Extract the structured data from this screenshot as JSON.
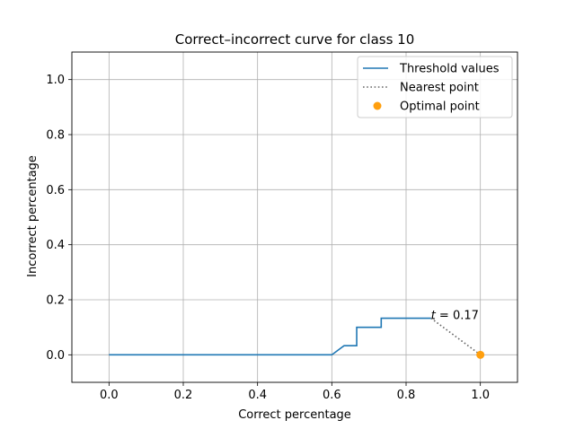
{
  "chart_data": {
    "type": "line",
    "title": "Correct–incorrect curve for class 10",
    "xlabel": "Correct percentage",
    "ylabel": "Incorrect percentage",
    "xlim": [
      -0.1,
      1.1
    ],
    "ylim": [
      -0.1,
      1.1
    ],
    "grid": true,
    "legend_position": "top-right",
    "x_ticks": [
      0.0,
      0.2,
      0.4,
      0.6,
      0.8,
      1.0
    ],
    "x_tick_labels": [
      "0.0",
      "0.2",
      "0.4",
      "0.6",
      "0.8",
      "1.0"
    ],
    "y_ticks": [
      0.0,
      0.2,
      0.4,
      0.6,
      0.8,
      1.0
    ],
    "y_tick_labels": [
      "0.0",
      "0.2",
      "0.4",
      "0.6",
      "0.8",
      "1.0"
    ],
    "series": [
      {
        "name": "Threshold values",
        "style": "solid",
        "color": "#1f77b4",
        "points": [
          [
            0.0,
            0.0
          ],
          [
            0.6,
            0.0
          ],
          [
            0.633,
            0.033
          ],
          [
            0.667,
            0.033
          ],
          [
            0.667,
            0.1
          ],
          [
            0.733,
            0.1
          ],
          [
            0.733,
            0.133
          ],
          [
            0.867,
            0.133
          ]
        ]
      },
      {
        "name": "Nearest point",
        "style": "dotted",
        "color": "#666666",
        "points": [
          [
            0.867,
            0.133
          ],
          [
            1.0,
            0.0
          ]
        ]
      },
      {
        "name": "Optimal point",
        "style": "marker",
        "color": "#ff9f0e",
        "points": [
          [
            1.0,
            0.0
          ]
        ]
      }
    ],
    "annotation": {
      "var": "t",
      "rest": " = 0.17",
      "x": 0.867,
      "y": 0.133
    }
  }
}
